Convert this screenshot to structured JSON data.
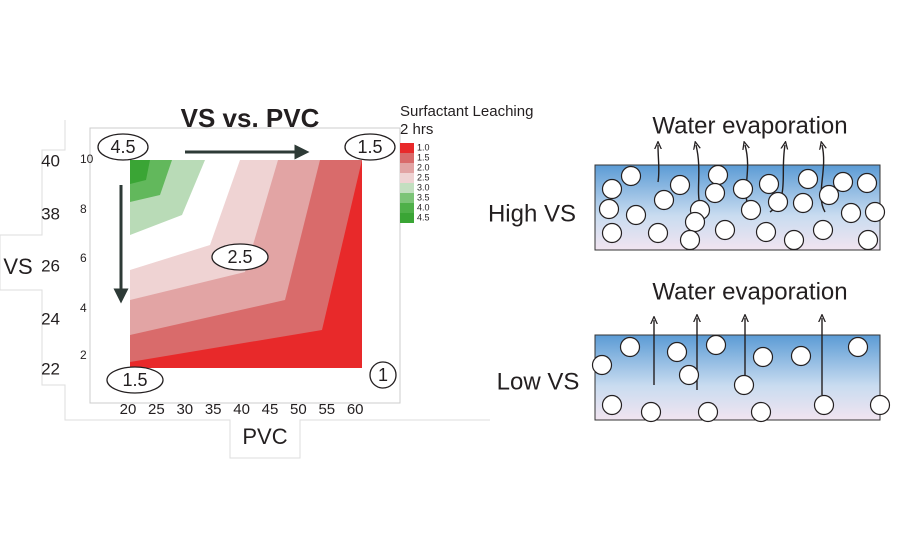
{
  "left_panel": {
    "title": "VS vs. PVC",
    "legend": {
      "title": "Surfactant Leaching",
      "subtitle": "2 hrs",
      "labels": [
        "1.0",
        "1.5",
        "2.0",
        "2.5",
        "3.0",
        "3.5",
        "4.0",
        "4.5"
      ]
    },
    "x_axis": {
      "label": "PVC",
      "ticks": [
        "20",
        "25",
        "30",
        "35",
        "40",
        "45",
        "50",
        "55",
        "60"
      ]
    },
    "y_axis": {
      "label": "VS",
      "outer_ticks": [
        "40",
        "38",
        "26",
        "24",
        "22"
      ],
      "inner_ticks": [
        "10",
        "8",
        "6",
        "4",
        "2"
      ]
    },
    "annotations": [
      "4.5",
      "1.5",
      "2.5",
      "1.5",
      "1"
    ]
  },
  "right_panel": {
    "top": {
      "caption": "Water evaporation",
      "label": "High VS"
    },
    "bottom": {
      "caption": "Water evaporation",
      "label": "Low VS"
    }
  }
}
